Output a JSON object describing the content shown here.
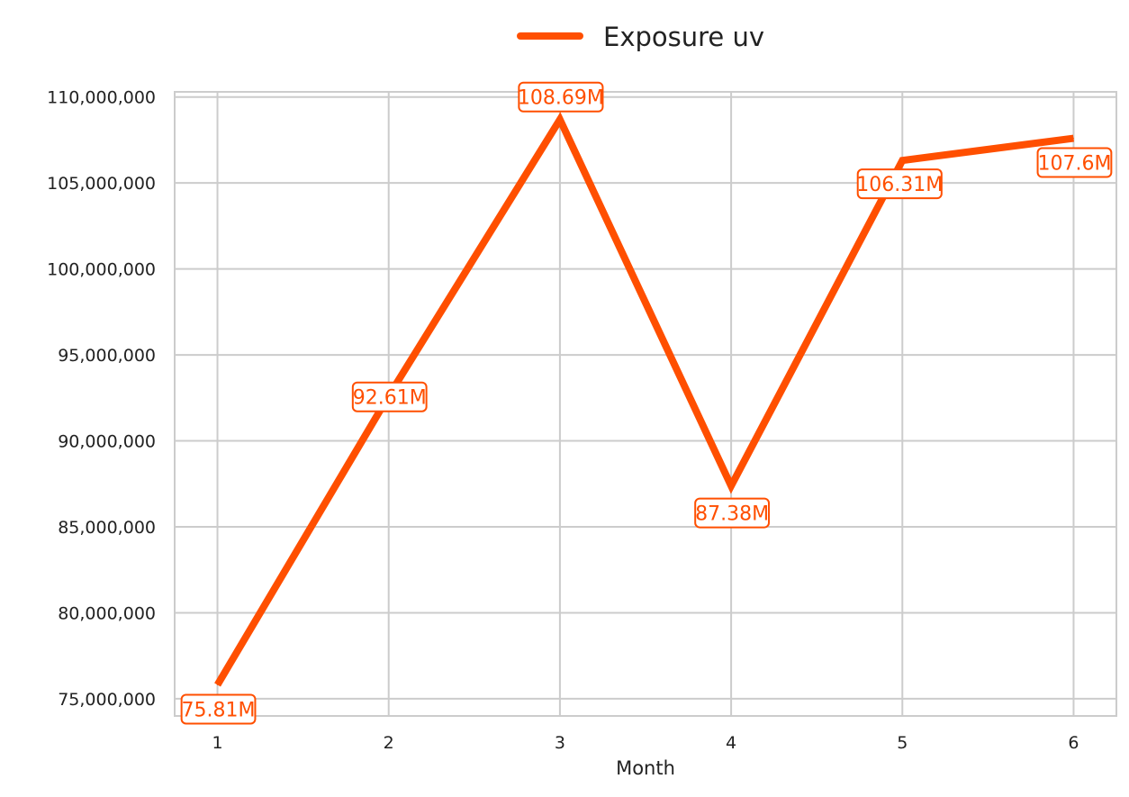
{
  "chart_data": {
    "type": "line",
    "xlabel": "Month",
    "ylabel": "",
    "x": [
      1,
      2,
      3,
      4,
      5,
      6
    ],
    "xlim": [
      0.75,
      6.25
    ],
    "ylim": [
      74000000,
      110300000
    ],
    "yticks": [
      75000000,
      80000000,
      85000000,
      90000000,
      95000000,
      100000000,
      105000000,
      110000000
    ],
    "ytick_labels": [
      "75,000,000",
      "80,000,000",
      "85,000,000",
      "90,000,000",
      "95,000,000",
      "100,000,000",
      "105,000,000",
      "110,000,000"
    ],
    "xtick_labels": [
      "1",
      "2",
      "3",
      "4",
      "5",
      "6"
    ],
    "grid": true,
    "legend_position": "top-center",
    "series": [
      {
        "name": "Exposure uv",
        "color": "#ff4f00",
        "values": [
          75810000,
          92610000,
          108690000,
          87380000,
          106310000,
          107600000
        ],
        "data_labels": [
          "75.81M",
          "92.61M",
          "108.69M",
          "87.38M",
          "106.31M",
          "107.6M"
        ]
      }
    ]
  }
}
